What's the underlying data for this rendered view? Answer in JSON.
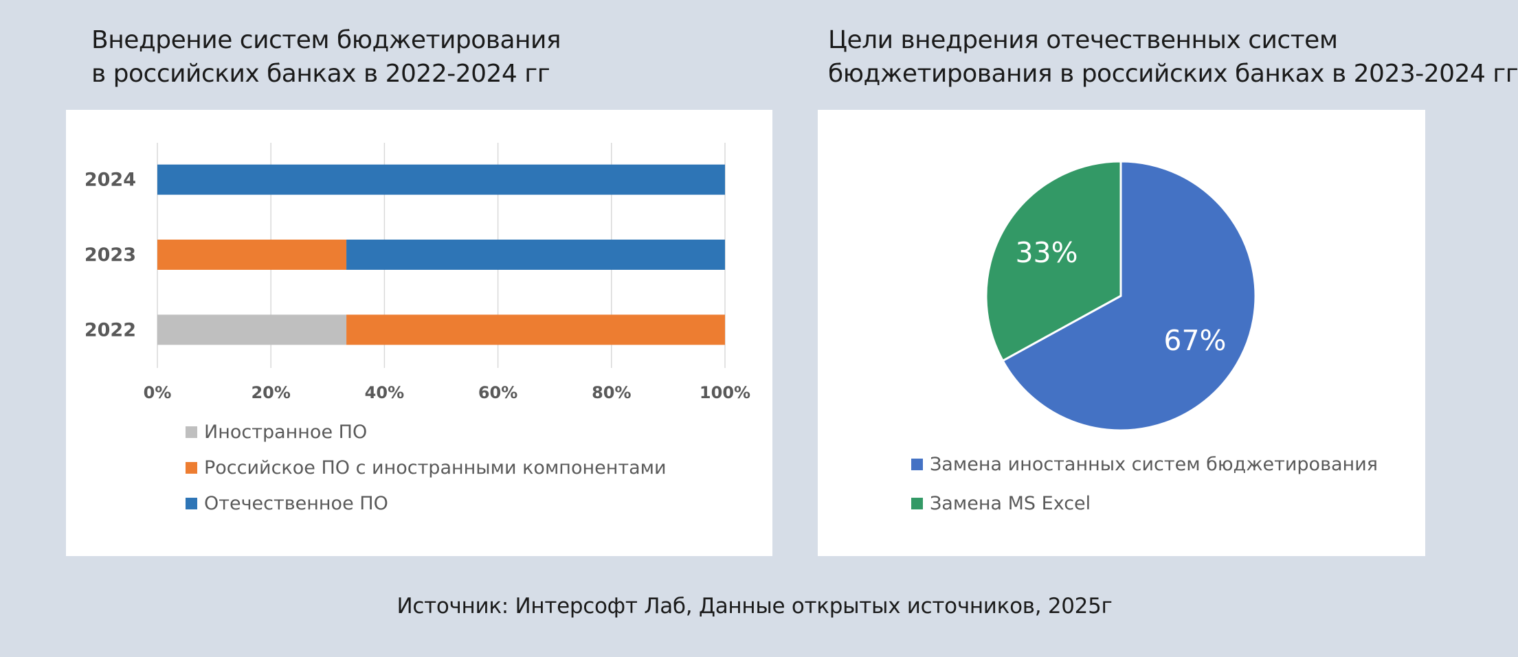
{
  "titles": {
    "left_line1": "Внедрение систем бюджетирования",
    "left_line2": "в российских банках в 2022-2024 гг",
    "right_line1": "Цели внедрения отечественных систем",
    "right_line2": "бюджетирования в российских банках в 2023-2024 гг"
  },
  "chart_data": [
    {
      "type": "bar",
      "orientation": "horizontal",
      "stacked": "percent",
      "title": "Внедрение систем бюджетирования в российских банках в 2022-2024 гг",
      "categories": [
        "2024",
        "2023",
        "2022"
      ],
      "series": [
        {
          "name": "Иностранное ПО",
          "color": "#bfbfbf",
          "values": [
            0,
            0,
            33.3
          ]
        },
        {
          "name": "Российское ПО с иностранными компонентами",
          "color": "#ed7d31",
          "values": [
            0,
            33.3,
            66.7
          ]
        },
        {
          "name": "Отечественное ПО",
          "color": "#2e75b6",
          "values": [
            100,
            66.7,
            0
          ]
        }
      ],
      "xlim": [
        0,
        100
      ],
      "xticks": [
        "0%",
        "20%",
        "40%",
        "60%",
        "80%",
        "100%"
      ],
      "grid": true,
      "legend": "bottom"
    },
    {
      "type": "pie",
      "title": "Цели внедрения отечественных систем бюджетирования в российских банках в 2023-2024 гг",
      "slices": [
        {
          "name": "Замена иностанных систем бюджетирования",
          "value": 67,
          "label": "67%",
          "color": "#4472c4"
        },
        {
          "name": "Замена MS Excel",
          "value": 33,
          "label": "33%",
          "color": "#339966"
        }
      ],
      "legend": "bottom"
    }
  ],
  "source": "Источник: Интерсофт Лаб,  Данные открытых источников, 2025г"
}
